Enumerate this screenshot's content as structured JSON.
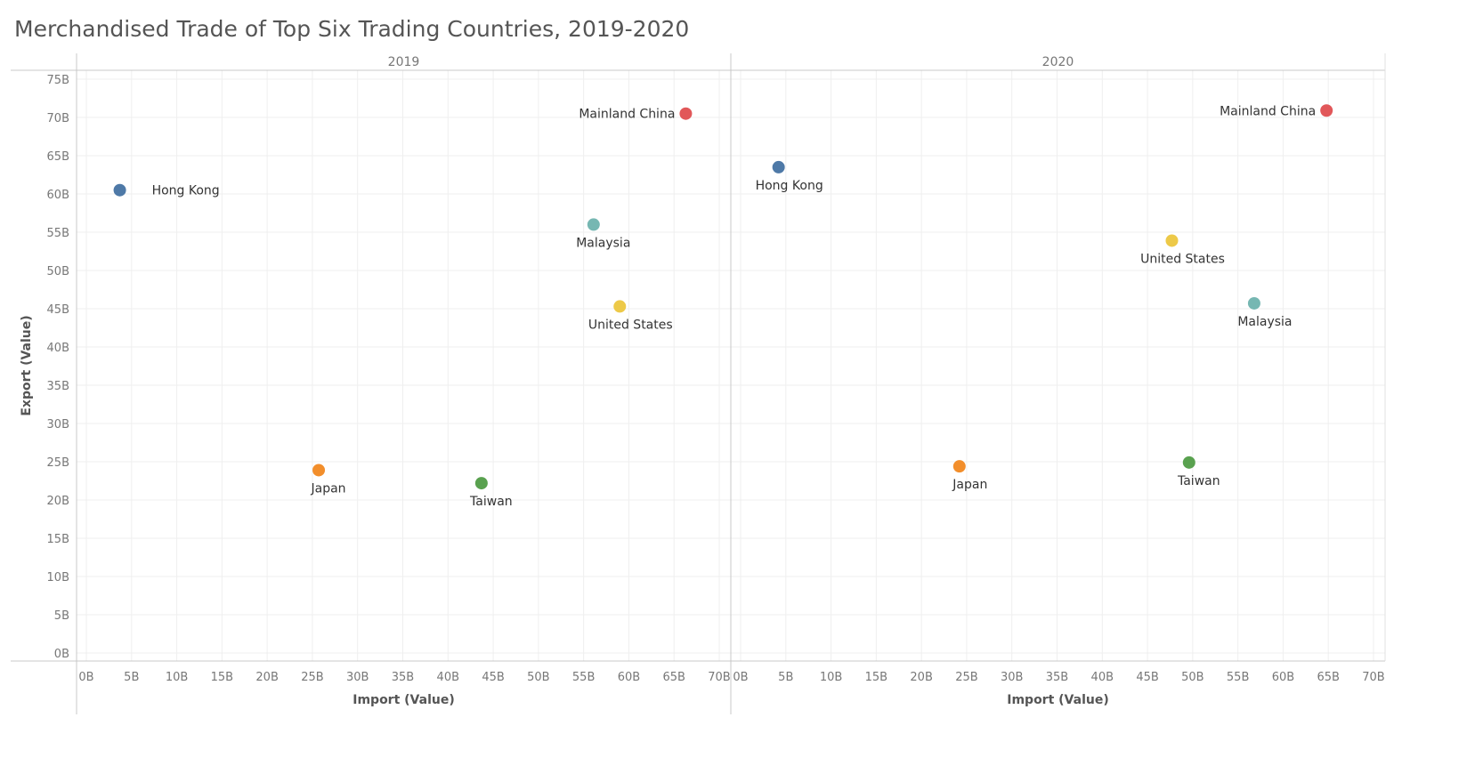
{
  "title": "Merchandised Trade of Top Six Trading Countries, 2019-2020",
  "colors": {
    "Hong Kong": "#4e79a7",
    "Mainland China": "#e15759",
    "Malaysia": "#76b7b2",
    "United States": "#edc948",
    "Japan": "#f28e2b",
    "Taiwan": "#59a14f"
  },
  "chart_data": {
    "type": "scatter",
    "title": "Merchandised Trade of Top Six Trading Countries, 2019-2020",
    "xlabel": "Import (Value)",
    "ylabel": "Export (Value)",
    "xlim": [
      0,
      70
    ],
    "ylim": [
      0,
      75
    ],
    "x_ticks": [
      "0B",
      "5B",
      "10B",
      "15B",
      "20B",
      "25B",
      "30B",
      "35B",
      "40B",
      "45B",
      "50B",
      "55B",
      "60B",
      "65B",
      "70B"
    ],
    "y_ticks": [
      "0B",
      "5B",
      "10B",
      "15B",
      "20B",
      "25B",
      "30B",
      "35B",
      "40B",
      "45B",
      "50B",
      "55B",
      "60B",
      "65B",
      "70B",
      "75B"
    ],
    "grid": true,
    "units": "B",
    "facets": [
      {
        "name": "2019",
        "points": [
          {
            "label": "Hong Kong",
            "x": 3.7,
            "y": 60.5
          },
          {
            "label": "Mainland China",
            "x": 66.3,
            "y": 70.5
          },
          {
            "label": "Malaysia",
            "x": 56.1,
            "y": 56.0
          },
          {
            "label": "United States",
            "x": 59.0,
            "y": 45.3
          },
          {
            "label": "Japan",
            "x": 25.7,
            "y": 23.9
          },
          {
            "label": "Taiwan",
            "x": 43.7,
            "y": 22.2
          }
        ]
      },
      {
        "name": "2020",
        "points": [
          {
            "label": "Hong Kong",
            "x": 4.2,
            "y": 63.5
          },
          {
            "label": "Mainland China",
            "x": 64.8,
            "y": 70.9
          },
          {
            "label": "Malaysia",
            "x": 56.8,
            "y": 45.7
          },
          {
            "label": "United States",
            "x": 47.7,
            "y": 53.9
          },
          {
            "label": "Japan",
            "x": 24.2,
            "y": 24.4
          },
          {
            "label": "Taiwan",
            "x": 49.6,
            "y": 24.9
          }
        ]
      }
    ]
  }
}
